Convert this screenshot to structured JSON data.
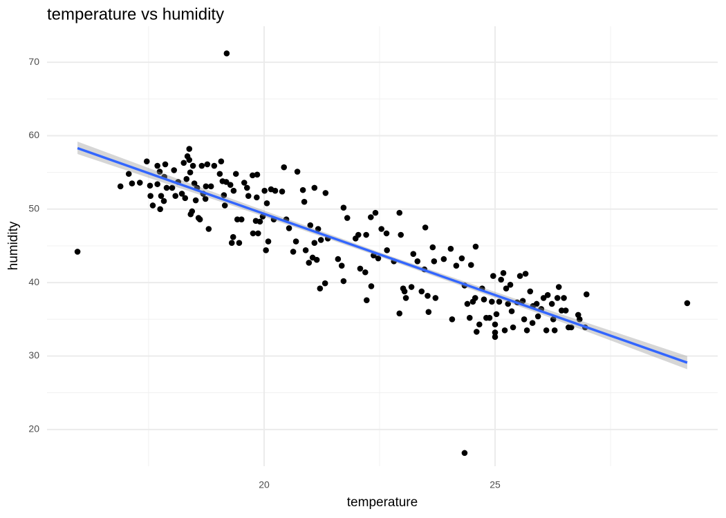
{
  "chart_data": {
    "type": "scatter",
    "title": "temperature vs humidity",
    "x_label": "temperature",
    "y_label": "humidity",
    "xlim": [
      15.3,
      29.82
    ],
    "ylim": [
      15.0,
      74.9
    ],
    "xticks": [
      20,
      25
    ],
    "yticks": [
      20,
      30,
      40,
      50,
      60,
      70
    ],
    "x_minor_ticks": [
      17.5,
      22.5,
      27.5
    ],
    "y_minor_ticks": [
      25,
      35,
      45,
      55,
      65
    ],
    "grid": true,
    "color": "#000000",
    "x": [
      15.96,
      19.19,
      24.34,
      29.16,
      16.89,
      17.07,
      17.14,
      17.31,
      17.46,
      17.53,
      17.54,
      17.59,
      17.69,
      17.69,
      17.74,
      17.75,
      17.77,
      17.83,
      17.86,
      17.89,
      17.84,
      18.01,
      18.05,
      18.08,
      18.14,
      18.22,
      18.26,
      18.29,
      18.32,
      18.34,
      18.38,
      18.38,
      18.4,
      18.41,
      18.44,
      18.46,
      18.49,
      18.52,
      18.55,
      18.58,
      18.61,
      18.65,
      18.68,
      18.73,
      18.74,
      18.77,
      18.8,
      18.85,
      18.92,
      19.04,
      19.07,
      19.1,
      19.13,
      19.18,
      19.15,
      19.27,
      19.3,
      19.33,
      19.34,
      19.39,
      19.42,
      19.46,
      19.51,
      19.57,
      19.63,
      19.66,
      19.75,
      19.76,
      19.82,
      19.84,
      19.85,
      19.87,
      19.91,
      19.97,
      20.01,
      20.04,
      20.06,
      20.09,
      20.15,
      20.21,
      20.24,
      20.39,
      20.43,
      20.48,
      20.54,
      20.63,
      20.69,
      20.72,
      20.84,
      20.87,
      20.9,
      20.97,
      21.0,
      21.05,
      21.09,
      21.09,
      21.14,
      21.17,
      21.21,
      21.23,
      21.32,
      21.33,
      21.38,
      21.6,
      21.68,
      21.72,
      21.72,
      21.8,
      21.98,
      22.04,
      22.08,
      22.19,
      22.21,
      22.22,
      22.31,
      22.32,
      22.37,
      22.41,
      22.47,
      22.54,
      22.65,
      22.66,
      22.81,
      22.93,
      22.96,
      23.01,
      23.04,
      23.07,
      22.93,
      23.19,
      23.23,
      23.32,
      23.41,
      23.47,
      23.49,
      23.54,
      23.56,
      23.65,
      23.68,
      23.71,
      23.89,
      24.04,
      24.07,
      24.16,
      24.28,
      24.34,
      24.4,
      24.45,
      24.48,
      24.52,
      24.57,
      24.58,
      24.6,
      24.66,
      24.72,
      24.76,
      24.81,
      24.88,
      24.93,
      24.96,
      25.0,
      25.0,
      25.0,
      25.03,
      25.09,
      25.13,
      25.18,
      25.21,
      25.24,
      25.28,
      25.33,
      25.36,
      25.39,
      25.48,
      25.54,
      25.6,
      25.63,
      25.66,
      25.69,
      25.76,
      25.81,
      25.82,
      25.9,
      25.93,
      26.0,
      26.05,
      26.11,
      26.14,
      26.23,
      26.26,
      26.29,
      26.35,
      26.38,
      26.44,
      26.49,
      26.53,
      26.59,
      26.65,
      26.8,
      26.83,
      26.95,
      26.98
    ],
    "y": [
      44.2,
      71.2,
      16.8,
      37.2,
      53.1,
      54.8,
      53.5,
      53.6,
      56.5,
      53.2,
      51.8,
      50.5,
      55.9,
      53.4,
      55.1,
      50.0,
      51.8,
      51.1,
      56.1,
      52.9,
      54.4,
      52.9,
      55.3,
      51.8,
      53.7,
      52.1,
      56.3,
      51.5,
      54.1,
      57.2,
      58.2,
      56.7,
      55.0,
      49.3,
      49.7,
      55.9,
      53.5,
      51.2,
      52.9,
      48.8,
      48.6,
      55.9,
      52.1,
      51.4,
      53.1,
      56.1,
      47.3,
      53.1,
      55.9,
      54.8,
      56.5,
      53.8,
      51.9,
      53.7,
      50.5,
      53.3,
      45.4,
      46.2,
      52.5,
      54.8,
      48.6,
      45.4,
      48.6,
      53.6,
      52.9,
      51.8,
      54.6,
      46.7,
      48.4,
      51.6,
      54.7,
      46.7,
      48.3,
      49.0,
      52.5,
      44.4,
      50.8,
      45.6,
      52.7,
      48.6,
      52.5,
      52.4,
      55.7,
      48.6,
      47.4,
      44.2,
      45.6,
      55.1,
      52.6,
      51.0,
      44.4,
      42.7,
      47.8,
      43.4,
      52.9,
      45.4,
      43.1,
      47.3,
      39.2,
      45.8,
      39.9,
      52.2,
      46.0,
      43.2,
      42.3,
      50.2,
      40.2,
      48.8,
      46.0,
      46.5,
      41.9,
      41.4,
      46.5,
      37.6,
      48.9,
      39.5,
      43.7,
      49.5,
      43.3,
      47.3,
      46.7,
      44.4,
      42.9,
      49.5,
      46.5,
      39.2,
      38.8,
      37.9,
      35.8,
      39.4,
      43.9,
      42.9,
      38.8,
      41.8,
      47.5,
      38.2,
      36.0,
      44.8,
      42.9,
      37.9,
      43.2,
      44.6,
      35.0,
      42.3,
      43.3,
      39.6,
      37.1,
      35.2,
      42.4,
      37.4,
      37.9,
      44.9,
      33.3,
      34.3,
      39.2,
      37.7,
      35.2,
      35.2,
      37.4,
      40.9,
      34.3,
      33.2,
      32.6,
      35.7,
      37.4,
      40.4,
      41.3,
      33.5,
      39.2,
      37.1,
      39.7,
      36.1,
      33.9,
      37.3,
      40.9,
      37.5,
      35.0,
      41.2,
      33.5,
      38.8,
      34.5,
      36.8,
      37.1,
      35.4,
      36.4,
      37.9,
      33.5,
      38.3,
      37.1,
      35.0,
      33.5,
      37.9,
      39.4,
      36.2,
      37.9,
      36.2,
      33.9,
      33.9,
      35.6,
      35.0,
      33.9,
      38.4
    ],
    "fit": {
      "color": "#3366FF",
      "x": [
        15.96,
        29.16
      ],
      "y": [
        58.3,
        29.1
      ]
    },
    "band": {
      "color": "#999999",
      "x": [
        15.96,
        19.3,
        22.6,
        25.9,
        29.16
      ],
      "lower": [
        57.5,
        50.5,
        43.3,
        35.9,
        28.2
      ],
      "upper": [
        59.2,
        51.4,
        43.9,
        36.8,
        30.0
      ]
    }
  }
}
